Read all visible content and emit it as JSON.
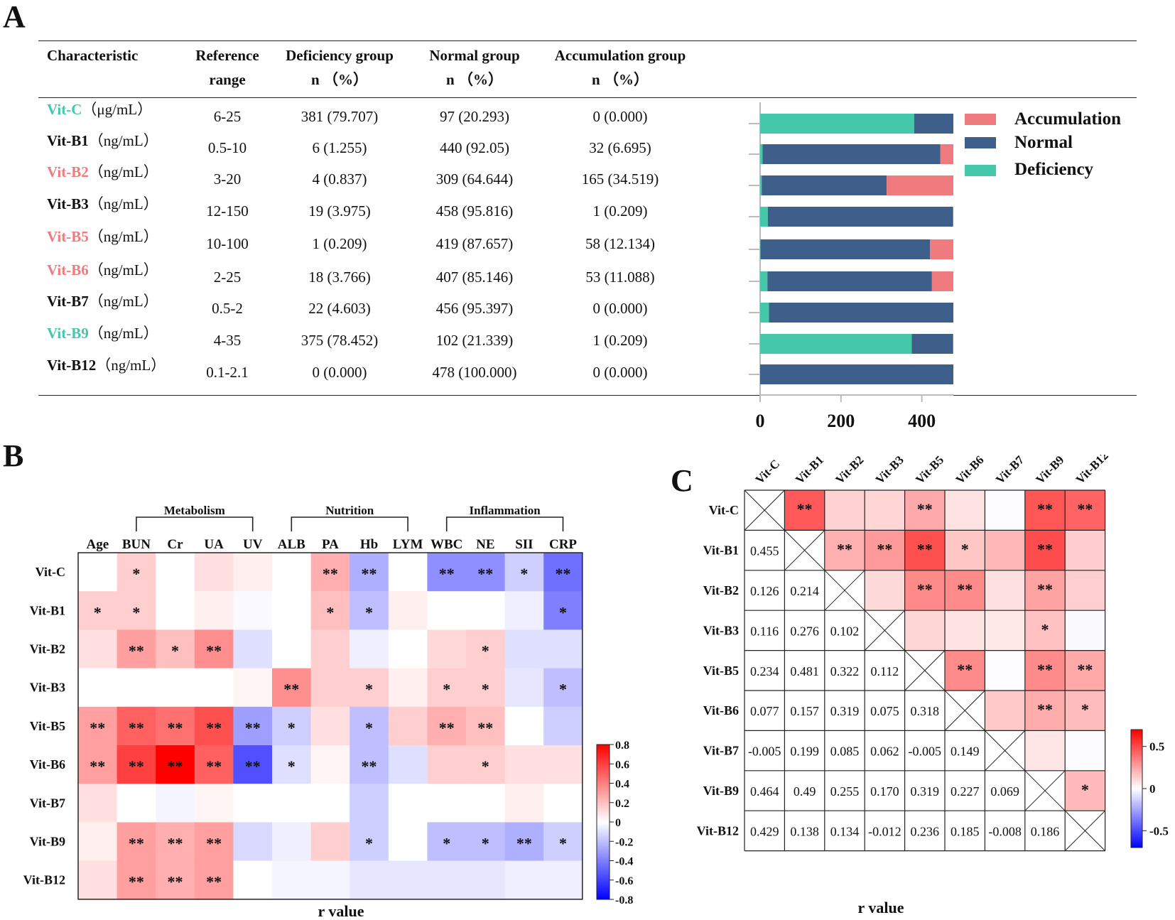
{
  "panel_letters": {
    "a": "A",
    "b": "B",
    "c": "C"
  },
  "colors": {
    "deficiency": "#45C7AA",
    "normal": "#3E5F8A",
    "accumulation": "#F07B7E",
    "neg": "#0000FF",
    "pos": "#FF0000"
  },
  "panel_a": {
    "headers": {
      "characteristic": "Characteristic",
      "ref1": "Reference",
      "ref2": "range",
      "def1": "Deficiency group",
      "def2": "n （%）",
      "norm1": "Normal group",
      "norm2": "n （%）",
      "acc1": "Accumulation group",
      "acc2": "n （%）"
    },
    "rows": [
      {
        "name": "Vit-C",
        "unit": "（μg/mL）",
        "color": "#45C7AA",
        "ref": "6-25",
        "def": "381 (79.707)",
        "norm": "97 (20.293)",
        "acc": "0 (0.000)"
      },
      {
        "name": "Vit-B1",
        "unit": "（ng/mL）",
        "color": "#111111",
        "ref": "0.5-10",
        "def": "6 (1.255)",
        "norm": "440 (92.05)",
        "acc": "32 (6.695)"
      },
      {
        "name": "Vit-B2",
        "unit": "（ng/mL）",
        "color": "#F07B7E",
        "ref": "3-20",
        "def": "4 (0.837)",
        "norm": "309 (64.644)",
        "acc": "165 (34.519)"
      },
      {
        "name": "Vit-B3",
        "unit": "（ng/mL）",
        "color": "#111111",
        "ref": "12-150",
        "def": "19 (3.975)",
        "norm": "458 (95.816)",
        "acc": "1 (0.209)"
      },
      {
        "name": "Vit-B5",
        "unit": "（ng/mL）",
        "color": "#F07B7E",
        "ref": "10-100",
        "def": "1 (0.209)",
        "norm": "419 (87.657)",
        "acc": "58 (12.134)"
      },
      {
        "name": "Vit-B6",
        "unit": "（ng/mL）",
        "color": "#F07B7E",
        "ref": "2-25",
        "def": "18 (3.766)",
        "norm": "407 (85.146)",
        "acc": "53 (11.088)"
      },
      {
        "name": "Vit-B7",
        "unit": "（ng/mL）",
        "color": "#111111",
        "ref": "0.5-2",
        "def": "22 (4.603)",
        "norm": "456 (95.397)",
        "acc": "0 (0.000)"
      },
      {
        "name": "Vit-B9",
        "unit": "（ng/mL）",
        "color": "#45C7AA",
        "ref": "4-35",
        "def": "375 (78.452)",
        "norm": "102 (21.339)",
        "acc": "1 (0.209)"
      },
      {
        "name": "Vit-B12",
        "unit": "（ng/mL）",
        "color": "#111111",
        "ref": "0.1-2.1",
        "def": "0 (0.000)",
        "norm": "478 (100.000)",
        "acc": "0 (0.000)"
      }
    ],
    "legend": {
      "accumulation": "Accumulation",
      "normal": "Normal",
      "deficiency": "Deficiency"
    }
  },
  "chart_data": [
    {
      "type": "bar",
      "orientation": "horizontal-stacked",
      "categories": [
        "Vit-C",
        "Vit-B1",
        "Vit-B2",
        "Vit-B3",
        "Vit-B5",
        "Vit-B6",
        "Vit-B7",
        "Vit-B9",
        "Vit-B12"
      ],
      "series": [
        {
          "name": "Deficiency",
          "values": [
            381,
            6,
            4,
            19,
            1,
            18,
            22,
            375,
            0
          ]
        },
        {
          "name": "Normal",
          "values": [
            97,
            440,
            309,
            458,
            419,
            407,
            456,
            102,
            478
          ]
        },
        {
          "name": "Accumulation",
          "values": [
            0,
            32,
            165,
            1,
            58,
            53,
            0,
            1,
            0
          ]
        }
      ],
      "xlim": [
        0,
        478
      ],
      "xticks": [
        "0",
        "200",
        "400"
      ],
      "legend_position": "right"
    },
    {
      "type": "heatmap",
      "rows": [
        "Vit-C",
        "Vit-B1",
        "Vit-B2",
        "Vit-B3",
        "Vit-B5",
        "Vit-B6",
        "Vit-B7",
        "Vit-B9",
        "Vit-B12"
      ],
      "cols": [
        "Age",
        "BUN",
        "Cr",
        "UA",
        "UV",
        "ALB",
        "PA",
        "Hb",
        "LYM",
        "WBC",
        "NE",
        "SII",
        "CRP"
      ],
      "groups": [
        {
          "label": "Metabolism",
          "from": 1,
          "to": 4
        },
        {
          "label": "Nutrition",
          "from": 5,
          "to": 8
        },
        {
          "label": "Inflammation",
          "from": 9,
          "to": 12
        }
      ],
      "values": [
        [
          0.0,
          0.15,
          0.0,
          0.1,
          0.05,
          0.0,
          0.25,
          -0.25,
          0.0,
          -0.35,
          -0.35,
          -0.15,
          -0.45
        ],
        [
          0.15,
          0.15,
          0.0,
          0.05,
          -0.02,
          0.0,
          0.2,
          -0.2,
          0.05,
          0.0,
          0.0,
          -0.05,
          -0.4
        ],
        [
          0.1,
          0.3,
          0.2,
          0.35,
          -0.1,
          0.0,
          0.15,
          -0.05,
          0.0,
          0.12,
          0.15,
          -0.1,
          -0.1
        ],
        [
          0.0,
          0.0,
          0.0,
          0.0,
          0.03,
          0.35,
          0.15,
          0.15,
          0.05,
          0.15,
          0.15,
          -0.08,
          -0.2
        ],
        [
          0.3,
          0.5,
          0.45,
          0.55,
          -0.3,
          -0.15,
          0.1,
          -0.2,
          0.15,
          0.25,
          0.2,
          0.0,
          -0.15
        ],
        [
          0.3,
          0.6,
          0.8,
          0.5,
          -0.55,
          -0.1,
          0.03,
          -0.2,
          -0.1,
          0.15,
          0.15,
          0.1,
          0.1
        ],
        [
          0.1,
          0.0,
          -0.03,
          0.03,
          0.0,
          0.0,
          0.0,
          -0.15,
          0.0,
          0.0,
          0.0,
          0.05,
          0.0
        ],
        [
          0.05,
          0.3,
          0.25,
          0.3,
          -0.12,
          -0.05,
          0.15,
          -0.15,
          0.0,
          -0.2,
          -0.2,
          -0.25,
          -0.15
        ],
        [
          0.1,
          0.3,
          0.25,
          0.3,
          0.0,
          -0.03,
          -0.03,
          -0.08,
          -0.08,
          -0.08,
          -0.08,
          -0.05,
          -0.05
        ]
      ],
      "stars": [
        [
          "",
          "*",
          "",
          "",
          "",
          "",
          "**",
          "**",
          "",
          "**",
          "**",
          "*",
          "**"
        ],
        [
          "*",
          "*",
          "",
          "",
          "",
          "",
          "*",
          "*",
          "",
          "",
          "",
          "",
          "*"
        ],
        [
          "",
          "**",
          "*",
          "**",
          "",
          "",
          "",
          "",
          "",
          "",
          "*",
          "",
          ""
        ],
        [
          "",
          "",
          "",
          "",
          "",
          "**",
          "",
          "*",
          "",
          "*",
          "*",
          "",
          "*"
        ],
        [
          "**",
          "**",
          "**",
          "**",
          "**",
          "*",
          "",
          "*",
          "",
          "**",
          "**",
          "",
          ""
        ],
        [
          "**",
          "**",
          "**",
          "**",
          "**",
          "*",
          "",
          "**",
          "",
          "",
          "*",
          "",
          ""
        ],
        [
          "",
          "",
          "",
          "",
          "",
          "",
          "",
          "",
          "",
          "",
          "",
          "",
          ""
        ],
        [
          "",
          "**",
          "**",
          "**",
          "",
          "",
          "",
          "*",
          "",
          "*",
          "*",
          "**",
          "*"
        ],
        [
          "",
          "**",
          "**",
          "**",
          "",
          "",
          "",
          "",
          "",
          "",
          "",
          "",
          ""
        ]
      ],
      "colorbar": {
        "min": -0.8,
        "max": 0.8,
        "ticks": [
          "0.8",
          "0.6",
          "0.4",
          "0.2",
          "0",
          "-0.2",
          "-0.4",
          "-0.6",
          "-0.8"
        ]
      },
      "xlabel": "r value"
    },
    {
      "type": "heatmap",
      "subtype": "correlation-matrix",
      "labels": [
        "Vit-C",
        "Vit-B1",
        "Vit-B2",
        "Vit-B3",
        "Vit-B5",
        "Vit-B6",
        "Vit-B7",
        "Vit-B9",
        "Vit-B12"
      ],
      "lower_text": [
        [
          "",
          "",
          "",
          "",
          "",
          "",
          "",
          "",
          ""
        ],
        [
          "0.455",
          "",
          "",
          "",
          "",
          "",
          "",
          "",
          ""
        ],
        [
          "0.126",
          "0.214",
          "",
          "",
          "",
          "",
          "",
          "",
          ""
        ],
        [
          "0.116",
          "0.276",
          "0.102",
          "",
          "",
          "",
          "",
          "",
          ""
        ],
        [
          "0.234",
          "0.481",
          "0.322",
          "0.112",
          "",
          "",
          "",
          "",
          ""
        ],
        [
          "0.077",
          "0.157",
          "0.319",
          "0.075",
          "0.318",
          "",
          "",
          "",
          ""
        ],
        [
          "-0.005",
          "0.199",
          "0.085",
          "0.062",
          "-0.005",
          "0.149",
          "",
          "",
          ""
        ],
        [
          "0.464",
          "0.49",
          "0.255",
          "0.170",
          "0.319",
          "0.227",
          "0.069",
          "",
          ""
        ],
        [
          "0.429",
          "0.138",
          "0.134",
          "-0.012",
          "0.236",
          "0.185",
          "-0.008",
          "0.186",
          ""
        ]
      ],
      "upper_values": [
        [
          0,
          0.455,
          0.126,
          0.116,
          0.234,
          0.077,
          -0.005,
          0.464,
          0.429
        ],
        [
          0,
          0,
          0.214,
          0.276,
          0.481,
          0.157,
          0.199,
          0.49,
          0.138
        ],
        [
          0,
          0,
          0,
          0.102,
          0.322,
          0.319,
          0.085,
          0.255,
          0.134
        ],
        [
          0,
          0,
          0,
          0,
          0.112,
          0.075,
          0.062,
          0.17,
          -0.012
        ],
        [
          0,
          0,
          0,
          0,
          0,
          0.318,
          -0.005,
          0.319,
          0.236
        ],
        [
          0,
          0,
          0,
          0,
          0,
          0,
          0.149,
          0.227,
          0.185
        ],
        [
          0,
          0,
          0,
          0,
          0,
          0,
          0,
          0.069,
          -0.008
        ],
        [
          0,
          0,
          0,
          0,
          0,
          0,
          0,
          0,
          0.186
        ],
        [
          0,
          0,
          0,
          0,
          0,
          0,
          0,
          0,
          0
        ]
      ],
      "upper_stars": [
        [
          "",
          "**",
          "",
          "",
          "**",
          "",
          "",
          "**",
          "**"
        ],
        [
          "",
          "",
          "**",
          "**",
          "**",
          "*",
          "",
          "**",
          ""
        ],
        [
          "",
          "",
          "",
          "",
          "**",
          "**",
          "",
          "**",
          ""
        ],
        [
          "",
          "",
          "",
          "",
          "",
          "",
          "",
          "*",
          ""
        ],
        [
          "",
          "",
          "",
          "",
          "",
          "**",
          "",
          "**",
          "**"
        ],
        [
          "",
          "",
          "",
          "",
          "",
          "",
          "",
          "**",
          "*"
        ],
        [
          "",
          "",
          "",
          "",
          "",
          "",
          "",
          "",
          ""
        ],
        [
          "",
          "",
          "",
          "",
          "",
          "",
          "",
          "",
          "*"
        ],
        [
          "",
          "",
          "",
          "",
          "",
          "",
          "",
          "",
          ""
        ]
      ],
      "colorbar": {
        "min": -0.7,
        "max": 0.7,
        "ticks": [
          "0.5",
          "0",
          "-0.5"
        ]
      },
      "xlabel": "r value"
    }
  ]
}
